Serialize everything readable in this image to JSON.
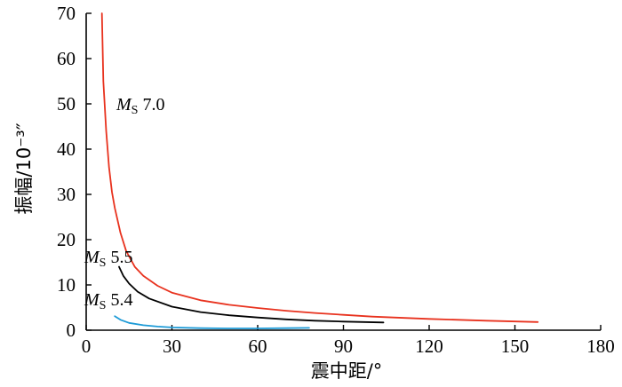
{
  "chart_data": {
    "type": "line",
    "xlabel": "震中距/°",
    "ylabel": "振幅/10⁻³″",
    "xlim": [
      0,
      180
    ],
    "ylim": [
      0,
      70
    ],
    "xticks": [
      0,
      30,
      60,
      90,
      120,
      150,
      180
    ],
    "yticks": [
      0,
      10,
      20,
      30,
      40,
      50,
      60,
      70
    ],
    "grid": false,
    "series": [
      {
        "name": "Ms 7.0",
        "label_main": "M",
        "label_sub": "S",
        "label_value": "7.0",
        "color": "#e8321e",
        "x": [
          5.5,
          6,
          7,
          8,
          9,
          10,
          12,
          14,
          17,
          20,
          25,
          30,
          40,
          50,
          60,
          70,
          80,
          90,
          100,
          120,
          140,
          158
        ],
        "y": [
          70,
          55,
          44,
          36,
          30.5,
          27,
          21.5,
          17.5,
          14,
          12,
          9.8,
          8.3,
          6.6,
          5.6,
          4.9,
          4.3,
          3.8,
          3.4,
          3.0,
          2.5,
          2.1,
          1.8
        ]
      },
      {
        "name": "Ms 5.5",
        "label_main": "M",
        "label_sub": "S",
        "label_value": "5.5",
        "color": "#000000",
        "x": [
          11.5,
          13,
          15,
          18,
          22,
          30,
          40,
          50,
          60,
          70,
          80,
          90,
          104
        ],
        "y": [
          14,
          12,
          10.3,
          8.5,
          7.0,
          5.2,
          4.0,
          3.3,
          2.8,
          2.4,
          2.1,
          1.9,
          1.7
        ]
      },
      {
        "name": "Ms 5.4",
        "label_main": "M",
        "label_sub": "S",
        "label_value": "5.4",
        "color": "#1e9bd7",
        "x": [
          10,
          12,
          15,
          20,
          25,
          30,
          40,
          50,
          60,
          70,
          78
        ],
        "y": [
          3.1,
          2.3,
          1.6,
          1.1,
          0.8,
          0.6,
          0.45,
          0.4,
          0.4,
          0.45,
          0.5
        ]
      }
    ]
  }
}
